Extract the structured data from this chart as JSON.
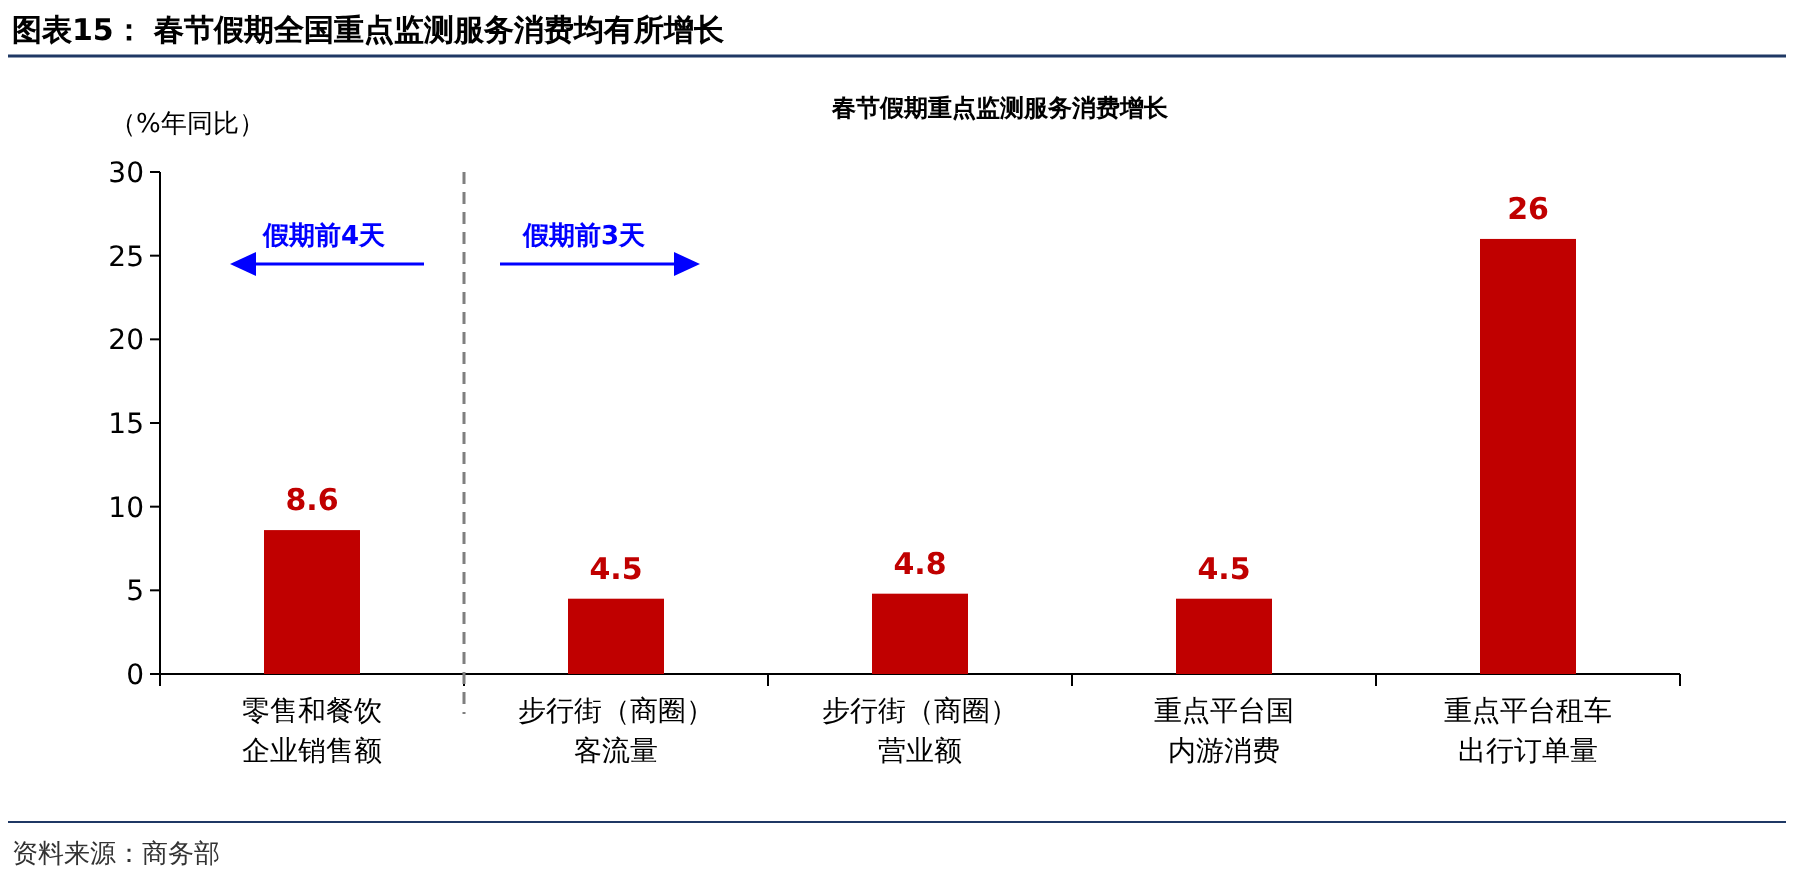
{
  "chart_data": {
    "type": "bar",
    "title": "图表15：  春节假期全国重点监测服务消费均有所增长",
    "subtitle": "春节假期重点监测服务消费增长",
    "ylabel": "（%年同比）",
    "categories": [
      "零售和餐饮企业销售额",
      "步行街（商圈）客流量",
      "步行街（商圈）营业额",
      "重点平台国内游消费",
      "重点平台租车出行订单量"
    ],
    "values": [
      8.6,
      4.5,
      4.8,
      4.5,
      26
    ],
    "color": "#c00000",
    "data_labels": true,
    "ylim": [
      0,
      30
    ],
    "yticks": [
      0,
      5,
      10,
      15,
      20,
      25,
      30
    ],
    "annotations": [
      "假期前4天",
      "假期前3天",
      "资料来源：商务部"
    ]
  }
}
